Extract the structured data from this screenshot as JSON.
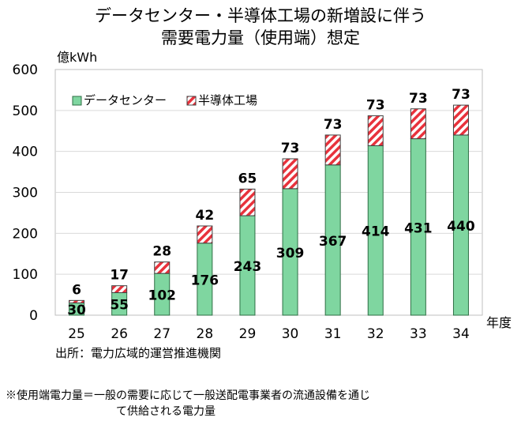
{
  "chart_data": {
    "type": "bar",
    "stacked": true,
    "title": [
      "データセンター・半導体工場の新増設に伴う",
      "需要電力量（使用端）想定"
    ],
    "ylabel": "億kWh",
    "xlabel": "年度",
    "categories": [
      "25",
      "26",
      "27",
      "28",
      "29",
      "30",
      "31",
      "32",
      "33",
      "34"
    ],
    "yticks": [
      "0",
      "100",
      "200",
      "300",
      "400",
      "500",
      "600"
    ],
    "ylim": [
      0,
      600
    ],
    "grid": true,
    "legend_position": "top-left",
    "series": [
      {
        "name": "データセンター",
        "color": "#7fd6a0",
        "pattern": "solid",
        "values": [
          30,
          55,
          102,
          176,
          243,
          309,
          367,
          414,
          431,
          440
        ]
      },
      {
        "name": "半導体工場",
        "color": "#e8323c",
        "pattern": "diagonal-stripes",
        "values": [
          6,
          17,
          28,
          42,
          65,
          73,
          73,
          73,
          73,
          73
        ]
      }
    ]
  },
  "notes": {
    "source": "出所：電力広域的運営推進機関",
    "footnote_line1": "※使用端電力量＝一般の需要に応じて一般送配電事業者の流通設備を通じ",
    "footnote_line2": "て供給される電力量"
  }
}
